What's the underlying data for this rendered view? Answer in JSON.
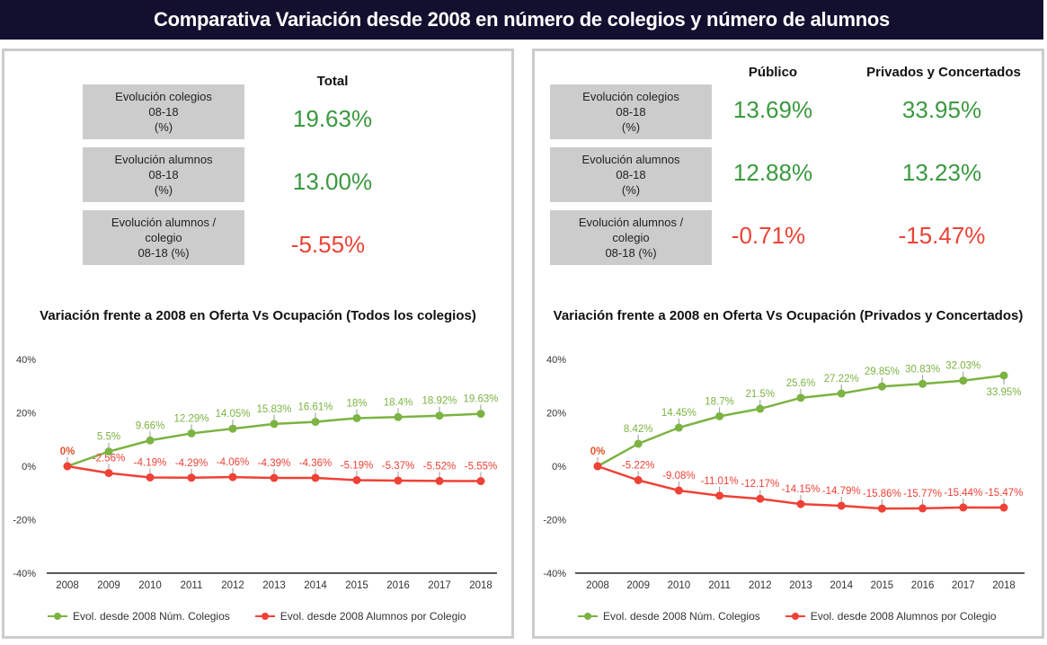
{
  "header": {
    "title": "Comparativa Variación desde 2008 en número de colegios y número de alumnos"
  },
  "colors": {
    "header_bg": "#130f2f",
    "positive": "#3a993f",
    "negative": "#ea4335",
    "series_green": "#7cb342",
    "series_red": "#ef4136",
    "box_bg": "#cccccc"
  },
  "kpi_labels": [
    [
      "Evolución colegios",
      "08-18",
      "(%)"
    ],
    [
      "Evolución alumnos",
      "08-18",
      "(%)"
    ],
    [
      "Evolución  alumnos /",
      "colegio",
      "08-18 (%)"
    ]
  ],
  "left_table": {
    "column": "Total",
    "values": [
      "19.63%",
      "13.00%",
      "-5.55%"
    ]
  },
  "right_table": {
    "columns": [
      "Público",
      "Privados y Concertados"
    ],
    "publico": [
      "13.69%",
      "12.88%",
      "-0.71%"
    ],
    "privados": [
      "33.95%",
      "13.23%",
      "-15.47%"
    ]
  },
  "chart_data": [
    {
      "type": "line",
      "title": "Variación frente a 2008 en Oferta Vs Ocupación (Todos los colegios)",
      "x": [
        "2008",
        "2009",
        "2010",
        "2011",
        "2012",
        "2013",
        "2014",
        "2015",
        "2016",
        "2017",
        "2018"
      ],
      "ylim": [
        -40,
        40
      ],
      "yticks": [
        40,
        20,
        0,
        -20,
        -40
      ],
      "ytick_labels": [
        "40%",
        "20%",
        "0%",
        "-20%",
        "-40%"
      ],
      "legend": "bottom",
      "series": [
        {
          "name": "Evol. desde 2008 Núm. Colegios",
          "color": "#7cb342",
          "values": [
            0,
            5.5,
            9.66,
            12.29,
            14.05,
            15.83,
            16.61,
            18,
            18.4,
            18.92,
            19.63
          ],
          "labels": [
            "",
            "5.5%",
            "9.66%",
            "12.29%",
            "14.05%",
            "15.83%",
            "16.61%",
            "18%",
            "18.4%",
            "18.92%",
            "19.63%"
          ]
        },
        {
          "name": "Evol. desde 2008 Alumnos por Colegio",
          "color": "#ef4136",
          "values": [
            0,
            -2.56,
            -4.19,
            -4.29,
            -4.06,
            -4.39,
            -4.36,
            -5.19,
            -5.37,
            -5.52,
            -5.55
          ],
          "labels": [
            "0%",
            "-2.56%",
            "-4.19%",
            "-4.29%",
            "-4.06%",
            "-4.39%",
            "-4.36%",
            "-5.19%",
            "-5.37%",
            "-5.52%",
            "-5.55%"
          ]
        }
      ]
    },
    {
      "type": "line",
      "title": "Variación frente a 2008 en Oferta Vs Ocupación (Privados y Concertados)",
      "x": [
        "2008",
        "2009",
        "2010",
        "2011",
        "2012",
        "2013",
        "2014",
        "2015",
        "2016",
        "2017",
        "2018"
      ],
      "ylim": [
        -40,
        40
      ],
      "yticks": [
        40,
        20,
        0,
        -20,
        -40
      ],
      "ytick_labels": [
        "40%",
        "20%",
        "0%",
        "-20%",
        "-40%"
      ],
      "legend": "bottom",
      "series": [
        {
          "name": "Evol. desde 2008 Núm. Colegios",
          "color": "#7cb342",
          "values": [
            0,
            8.42,
            14.45,
            18.7,
            21.5,
            25.6,
            27.22,
            29.85,
            30.83,
            32.03,
            33.95
          ],
          "labels": [
            "",
            "8.42%",
            "14.45%",
            "18.7%",
            "21.5%",
            "25.6%",
            "27.22%",
            "29.85%",
            "30.83%",
            "32.03%",
            "33.95%"
          ]
        },
        {
          "name": "Evol. desde 2008 Alumnos por Colegio",
          "color": "#ef4136",
          "values": [
            0,
            -5.22,
            -9.08,
            -11.01,
            -12.17,
            -14.15,
            -14.79,
            -15.86,
            -15.77,
            -15.44,
            -15.47
          ],
          "labels": [
            "0%",
            "-5.22%",
            "-9.08%",
            "-11.01%",
            "-12.17%",
            "-14.15%",
            "-14.79%",
            "-15.86%",
            "-15.77%",
            "-15.44%",
            "-15.47%"
          ]
        }
      ]
    }
  ]
}
